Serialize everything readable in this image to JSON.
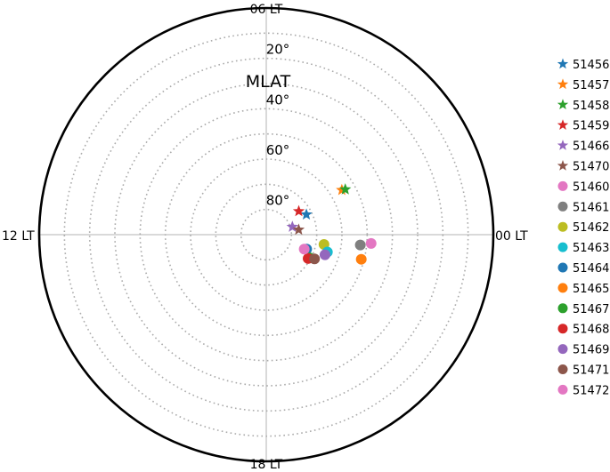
{
  "chart_data": {
    "type": "scatter",
    "projection": "polar",
    "title": "",
    "radial_axis_label": "MLAT",
    "radial_range_deg": [
      90,
      0
    ],
    "radial_ticks": [
      {
        "value": 20,
        "label": "20°"
      },
      {
        "value": 40,
        "label": "40°"
      },
      {
        "value": 60,
        "label": "60°"
      },
      {
        "value": 80,
        "label": "80°"
      }
    ],
    "angular_labels": [
      "06 LT",
      "12 LT",
      "18 LT",
      "00 LT"
    ],
    "grid": true,
    "legend_position": "right",
    "series": [
      {
        "name": "51456",
        "marker": "star",
        "color": "#1f77b4",
        "points": [
          {
            "lt": 1.78,
            "mlat": 72.2
          }
        ]
      },
      {
        "name": "51457",
        "marker": "star",
        "color": "#ff7f0e",
        "points": [
          {
            "lt": 2.04,
            "mlat": 55.2
          }
        ]
      },
      {
        "name": "51458",
        "marker": "star",
        "color": "#2ca02c",
        "points": [
          {
            "lt": 1.99,
            "mlat": 53.9
          }
        ]
      },
      {
        "name": "51459",
        "marker": "star",
        "color": "#d62728",
        "points": [
          {
            "lt": 2.39,
            "mlat": 74.1
          }
        ]
      },
      {
        "name": "51466",
        "marker": "star",
        "color": "#9467bd",
        "points": [
          {
            "lt": 1.11,
            "mlat": 79.2
          }
        ]
      },
      {
        "name": "51470",
        "marker": "star",
        "color": "#8c564b",
        "points": [
          {
            "lt": 0.58,
            "mlat": 77.0
          }
        ]
      },
      {
        "name": "51460",
        "marker": "circle",
        "color": "#e377c2",
        "points": [
          {
            "lt": 23.68,
            "mlat": 48.3
          }
        ]
      },
      {
        "name": "51461",
        "marker": "circle",
        "color": "#7f7f7f",
        "points": [
          {
            "lt": 23.58,
            "mlat": 52.5
          }
        ]
      },
      {
        "name": "51462",
        "marker": "circle",
        "color": "#bcbd22",
        "points": [
          {
            "lt": 23.36,
            "mlat": 66.8
          }
        ]
      },
      {
        "name": "51463",
        "marker": "circle",
        "color": "#17becf",
        "points": [
          {
            "lt": 22.94,
            "mlat": 64.8
          }
        ]
      },
      {
        "name": "51464",
        "marker": "circle",
        "color": "#1f77b4",
        "points": [
          {
            "lt": 22.69,
            "mlat": 73.0
          }
        ]
      },
      {
        "name": "51465",
        "marker": "circle",
        "color": "#ff7f0e",
        "points": [
          {
            "lt": 23.03,
            "mlat": 51.1
          }
        ]
      },
      {
        "name": "51467",
        "marker": "circle",
        "color": "#2ca02c",
        "points": [
          {
            "lt": 22.12,
            "mlat": 70.5
          }
        ]
      },
      {
        "name": "51468",
        "marker": "circle",
        "color": "#d62728",
        "points": [
          {
            "lt": 22.02,
            "mlat": 70.9
          }
        ]
      },
      {
        "name": "51469",
        "marker": "circle",
        "color": "#9467bd",
        "points": [
          {
            "lt": 22.74,
            "mlat": 65.4
          }
        ]
      },
      {
        "name": "51471",
        "marker": "circle",
        "color": "#8c564b",
        "points": [
          {
            "lt": 22.22,
            "mlat": 68.6
          }
        ]
      },
      {
        "name": "51472",
        "marker": "circle",
        "color": "#e377c2",
        "points": [
          {
            "lt": 22.61,
            "mlat": 73.9
          }
        ]
      }
    ]
  }
}
